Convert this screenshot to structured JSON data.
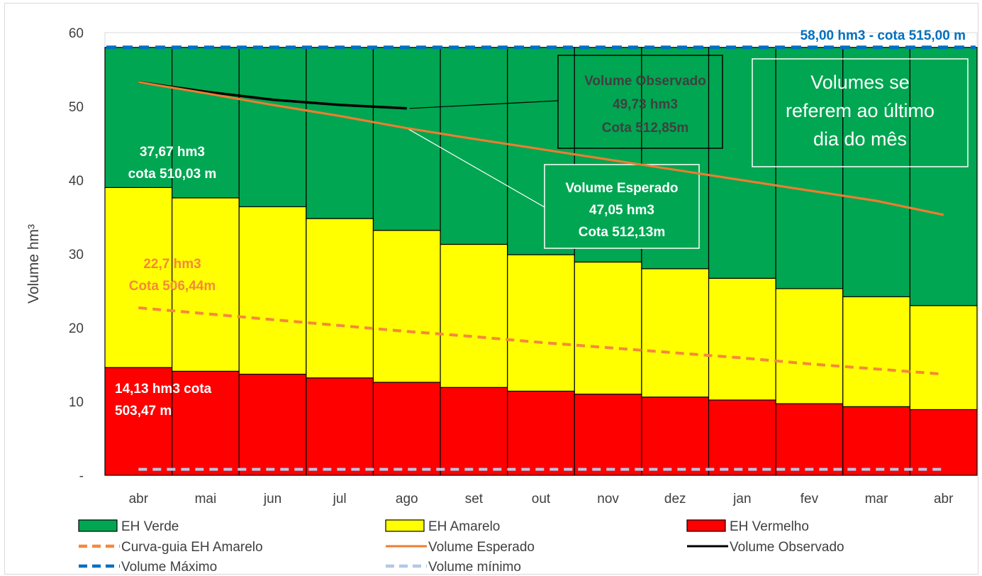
{
  "chart_data": {
    "type": "bar",
    "stacked": true,
    "categories": [
      "abr",
      "mai",
      "jun",
      "jul",
      "ago",
      "set",
      "out",
      "nov",
      "dez",
      "jan",
      "fev",
      "mar",
      "abr"
    ],
    "ylabel": "Volume hm³",
    "ylim": [
      0,
      60
    ],
    "yticks": [
      {
        "value": 0,
        "label": "-"
      },
      {
        "value": 10,
        "label": "10"
      },
      {
        "value": 20,
        "label": "20"
      },
      {
        "value": 30,
        "label": "30"
      },
      {
        "value": 40,
        "label": "40"
      },
      {
        "value": 50,
        "label": "50"
      },
      {
        "value": 60,
        "label": "60"
      }
    ],
    "bars": [
      {
        "name": "EH Vermelho",
        "color": "#ff0000",
        "tops": [
          14.6,
          14.1,
          13.7,
          13.2,
          12.6,
          11.9,
          11.4,
          11.0,
          10.6,
          10.2,
          9.7,
          9.3,
          8.9
        ]
      },
      {
        "name": "EH Amarelo",
        "color": "#ffff00",
        "tops": [
          39.0,
          37.6,
          36.4,
          34.8,
          33.2,
          31.3,
          29.9,
          28.9,
          28.0,
          26.7,
          25.3,
          24.2,
          23.0
        ]
      },
      {
        "name": "EH Verde",
        "color": "#00a651",
        "tops": [
          58.0,
          58.0,
          58.0,
          58.0,
          58.0,
          58.0,
          58.0,
          58.0,
          58.0,
          58.0,
          58.0,
          58.0,
          58.0
        ]
      }
    ],
    "lines": [
      {
        "name": "Curva-guia EH Amarelo",
        "color": "#f4893b",
        "style": "dashed",
        "values": [
          22.7,
          21.9,
          21.1,
          20.3,
          19.5,
          18.8,
          18.0,
          17.3,
          16.6,
          15.9,
          15.1,
          14.4,
          13.7
        ]
      },
      {
        "name": "Volume Esperado",
        "color": "#ed7d31",
        "style": "solid",
        "values": [
          53.3,
          51.8,
          50.2,
          48.7,
          47.05,
          45.6,
          44.2,
          42.8,
          41.4,
          40.0,
          38.6,
          37.2,
          35.3
        ]
      },
      {
        "name": "Volume Observado",
        "color": "#000000",
        "style": "solid",
        "values": [
          53.3,
          52.0,
          50.9,
          50.2,
          49.73,
          null,
          null,
          null,
          null,
          null,
          null,
          null,
          null
        ]
      },
      {
        "name": "Volume Máximo",
        "color": "#0070c0",
        "style": "dashed",
        "values": [
          58,
          58,
          58,
          58,
          58,
          58,
          58,
          58,
          58,
          58,
          58,
          58,
          58
        ]
      },
      {
        "name": "Volume mínimo",
        "color": "#b4c7e7",
        "style": "dashed",
        "values": [
          0.8,
          0.8,
          0.8,
          0.8,
          0.8,
          0.8,
          0.8,
          0.8,
          0.8,
          0.8,
          0.8,
          0.8,
          0.8
        ]
      }
    ],
    "annotations": {
      "max_label": "58,00  hm3 - cota 515,00 m",
      "verde_label": [
        "37,67 hm3",
        "cota 510,03 m"
      ],
      "amarelo_label": [
        "22,7 hm3",
        "Cota 506,44m"
      ],
      "vermelho_label": [
        "14,13 hm3 cota",
        "503,47 m"
      ],
      "observado_box": [
        "Volume Observado",
        "49,73 hm3",
        "Cota 512,85m"
      ],
      "esperado_box": [
        "Volume Esperado",
        "47,05 hm3",
        "Cota 512,13m"
      ],
      "note_box": [
        "Volumes se",
        "referem ao último",
        "dia do mês"
      ]
    },
    "legend": [
      {
        "label": "EH Verde",
        "kind": "box",
        "color": "#00a651"
      },
      {
        "label": "EH Amarelo",
        "kind": "box",
        "color": "#ffff00"
      },
      {
        "label": "EH Vermelho",
        "kind": "box",
        "color": "#ff0000"
      },
      {
        "label": "Curva-guia EH Amarelo",
        "kind": "dash",
        "color": "#f4893b"
      },
      {
        "label": "Volume Esperado",
        "kind": "line",
        "color": "#ed7d31"
      },
      {
        "label": "Volume Observado",
        "kind": "line",
        "color": "#000000"
      },
      {
        "label": "Volume Máximo",
        "kind": "dash",
        "color": "#0070c0"
      },
      {
        "label": "Volume mínimo",
        "kind": "dash",
        "color": "#b4c7e7"
      }
    ],
    "legend_position": "bottom"
  }
}
